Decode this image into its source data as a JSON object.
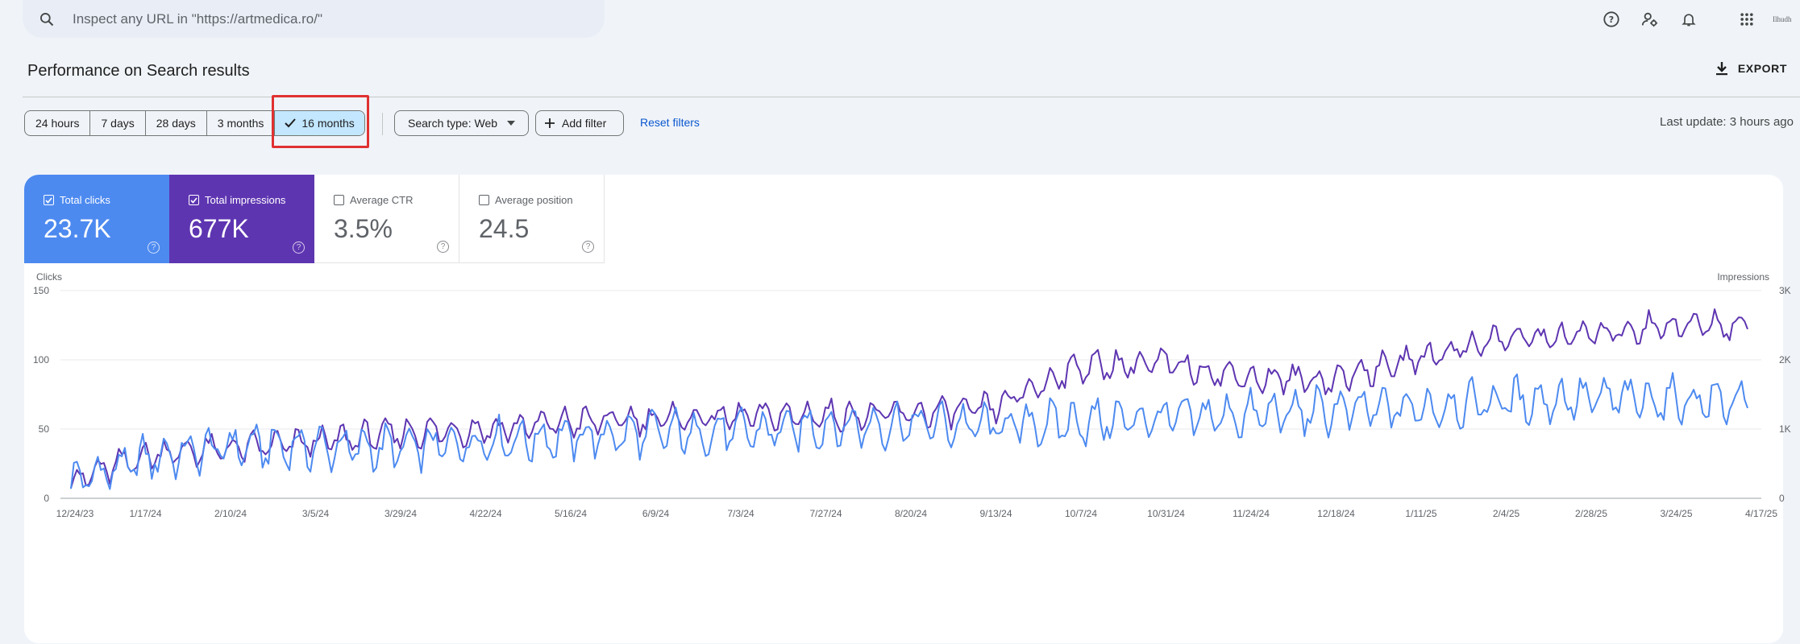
{
  "search": {
    "placeholder": "Inspect any URL in \"https://artmedica.ro/\""
  },
  "header_icons": [
    "help-icon",
    "manage-accounts-icon",
    "notifications-icon",
    "apps-grid-icon"
  ],
  "account_label": "Ilhudh",
  "page_title": "Performance on Search results",
  "export_label": "EXPORT",
  "date_ranges": [
    {
      "label": "24 hours",
      "selected": false
    },
    {
      "label": "7 days",
      "selected": false
    },
    {
      "label": "28 days",
      "selected": false
    },
    {
      "label": "3 months",
      "selected": false
    },
    {
      "label": "16 months",
      "selected": true
    }
  ],
  "filters": {
    "search_type": "Search type: Web",
    "add_filter": "Add filter",
    "reset": "Reset filters"
  },
  "last_update": "Last update: 3 hours ago",
  "metrics": [
    {
      "label": "Total clicks",
      "value": "23.7K",
      "checked": true
    },
    {
      "label": "Total impressions",
      "value": "677K",
      "checked": true
    },
    {
      "label": "Average CTR",
      "value": "3.5%",
      "checked": false
    },
    {
      "label": "Average position",
      "value": "24.5",
      "checked": false
    }
  ],
  "colors": {
    "clicks": "#4d8af0",
    "impressions": "#5e35b1",
    "accent_link": "#0b57d0",
    "highlight": "#e03131"
  },
  "chart_data": {
    "type": "line",
    "x": [
      "12/24/23",
      "1/17/24",
      "2/10/24",
      "3/5/24",
      "3/29/24",
      "4/22/24",
      "5/16/24",
      "6/9/24",
      "7/3/24",
      "7/27/24",
      "8/20/24",
      "9/13/24",
      "10/7/24",
      "10/31/24",
      "11/24/24",
      "12/18/24",
      "1/11/25",
      "2/4/25",
      "2/28/25",
      "3/24/25",
      "4/17/25"
    ],
    "xlabel": "",
    "ylabel_left": "Clicks",
    "ylabel_right": "Impressions",
    "ylim_left": [
      0,
      150
    ],
    "ylim_right": [
      0,
      3000
    ],
    "yticks_left": [
      "0",
      "50",
      "100",
      "150"
    ],
    "yticks_right": [
      "0",
      "1K",
      "2K",
      "3K"
    ],
    "grid": true,
    "series": [
      {
        "name": "Total clicks",
        "axis": "left",
        "values": [
          12,
          30,
          38,
          37,
          36,
          42,
          44,
          47,
          48,
          52,
          54,
          52,
          55,
          58,
          60,
          63,
          65,
          70,
          72,
          71,
          70
        ]
      },
      {
        "name": "Total impressions",
        "axis": "right",
        "values": [
          250,
          650,
          720,
          820,
          950,
          1000,
          1100,
          1150,
          1180,
          1200,
          1220,
          1300,
          1900,
          1950,
          1750,
          1700,
          2000,
          2300,
          2350,
          2500,
          2500
        ]
      }
    ]
  }
}
